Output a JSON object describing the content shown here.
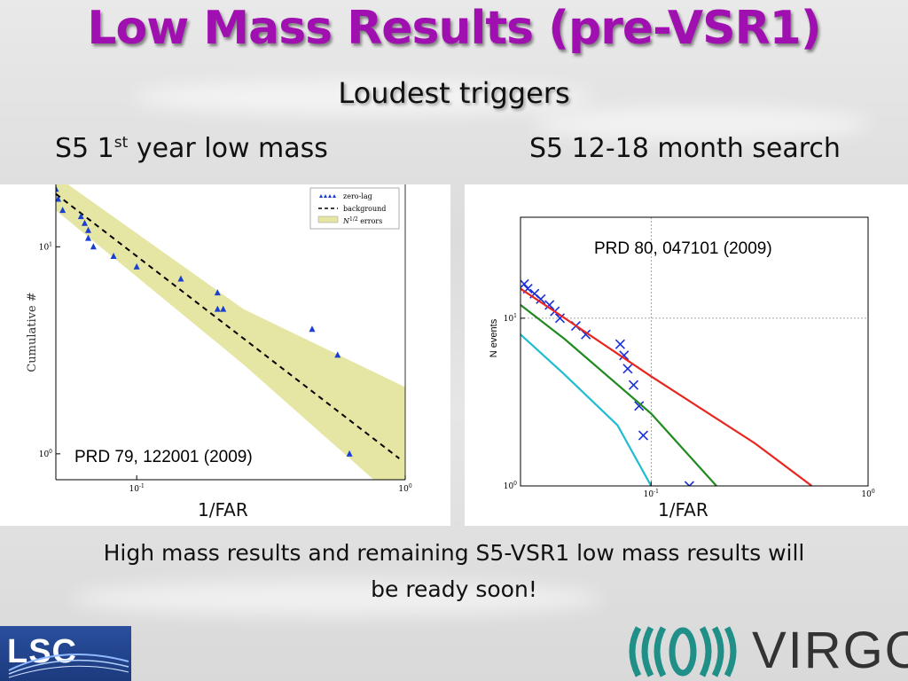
{
  "slide": {
    "title": "Low Mass Results (pre-VSR1)",
    "subtitle": "Loudest triggers",
    "left_heading_main": "S5 1",
    "left_heading_sup": "st",
    "left_heading_rest": " year low mass",
    "right_heading": "S5 12-18 month search",
    "footer_line1": "High mass results and remaining S5-VSR1 low mass results will",
    "footer_line2": "be ready soon!",
    "logo_left": "LSC",
    "logo_right": "VIRGO"
  },
  "chart_data": [
    {
      "type": "scatter",
      "xlabel": "1/FAR",
      "ylabel": "Cumulative #",
      "xscale": "log",
      "yscale": "log",
      "xlim": [
        0.05,
        1.0
      ],
      "ylim": [
        0.75,
        20
      ],
      "x_ticks": [
        "10^-1",
        "10^0"
      ],
      "y_ticks": [
        "10^0",
        "10^1"
      ],
      "legend_position": "top-right",
      "legend": [
        "zero-lag",
        "background",
        "N^1/2 errors"
      ],
      "annotation": "PRD 79, 122001 (2009)",
      "series": [
        {
          "name": "zero-lag",
          "marker": "triangle",
          "color": "#1a3fd0",
          "points": [
            [
              0.05,
              19
            ],
            [
              0.051,
              17
            ],
            [
              0.053,
              15
            ],
            [
              0.062,
              14
            ],
            [
              0.064,
              13
            ],
            [
              0.066,
              12
            ],
            [
              0.066,
              11
            ],
            [
              0.069,
              10
            ],
            [
              0.082,
              9
            ],
            [
              0.1,
              8
            ],
            [
              0.146,
              7
            ],
            [
              0.2,
              6
            ],
            [
              0.21,
              5
            ],
            [
              0.2,
              5
            ],
            [
              0.45,
              4
            ],
            [
              0.56,
              3
            ],
            [
              0.62,
              1
            ]
          ]
        },
        {
          "name": "background",
          "style": "dashed",
          "color": "#000000",
          "points": [
            [
              0.05,
              18
            ],
            [
              0.95,
              0.95
            ]
          ]
        },
        {
          "name": "N^1/2 errors",
          "style": "band",
          "color": "#e6e6a4",
          "upper": [
            [
              0.05,
              22
            ],
            [
              0.25,
              5.0
            ],
            [
              1.0,
              2.1
            ]
          ],
          "lower": [
            [
              0.05,
              15
            ],
            [
              0.25,
              2.7
            ],
            [
              1.0,
              0.55
            ]
          ]
        }
      ]
    },
    {
      "type": "line",
      "ylabel": "N events",
      "xlabel": "1/FAR",
      "xscale": "log",
      "yscale": "log",
      "xlim": [
        0.025,
        1.0
      ],
      "ylim": [
        1,
        40
      ],
      "x_ticks": [
        "10^-1",
        "10^0"
      ],
      "y_ticks": [
        "10^0",
        "10^1"
      ],
      "grid": true,
      "annotation": "PRD 80, 047101 (2009)",
      "series": [
        {
          "name": "",
          "marker": "x",
          "color": "#1a2fd8",
          "points": [
            [
              0.026,
              16
            ],
            [
              0.027,
              15
            ],
            [
              0.029,
              14
            ],
            [
              0.031,
              13
            ],
            [
              0.034,
              12
            ],
            [
              0.036,
              11
            ],
            [
              0.038,
              10
            ],
            [
              0.045,
              9
            ],
            [
              0.05,
              8
            ],
            [
              0.072,
              7
            ],
            [
              0.075,
              6
            ],
            [
              0.078,
              5
            ],
            [
              0.083,
              4
            ],
            [
              0.088,
              3
            ],
            [
              0.092,
              2
            ],
            [
              0.15,
              1
            ]
          ]
        },
        {
          "name": "",
          "color": "#e8251e",
          "points": [
            [
              0.025,
              15
            ],
            [
              0.04,
              10
            ],
            [
              0.1,
              4.5
            ],
            [
              0.3,
              1.8
            ],
            [
              0.55,
              1.0
            ]
          ]
        },
        {
          "name": "",
          "color": "#1f8a1f",
          "points": [
            [
              0.025,
              12
            ],
            [
              0.04,
              7.5
            ],
            [
              0.1,
              2.7
            ],
            [
              0.2,
              1.0
            ]
          ]
        },
        {
          "name": "",
          "color": "#20bcd0",
          "points": [
            [
              0.025,
              8
            ],
            [
              0.04,
              4.6
            ],
            [
              0.07,
              2.3
            ],
            [
              0.1,
              1.0
            ]
          ]
        }
      ]
    }
  ]
}
